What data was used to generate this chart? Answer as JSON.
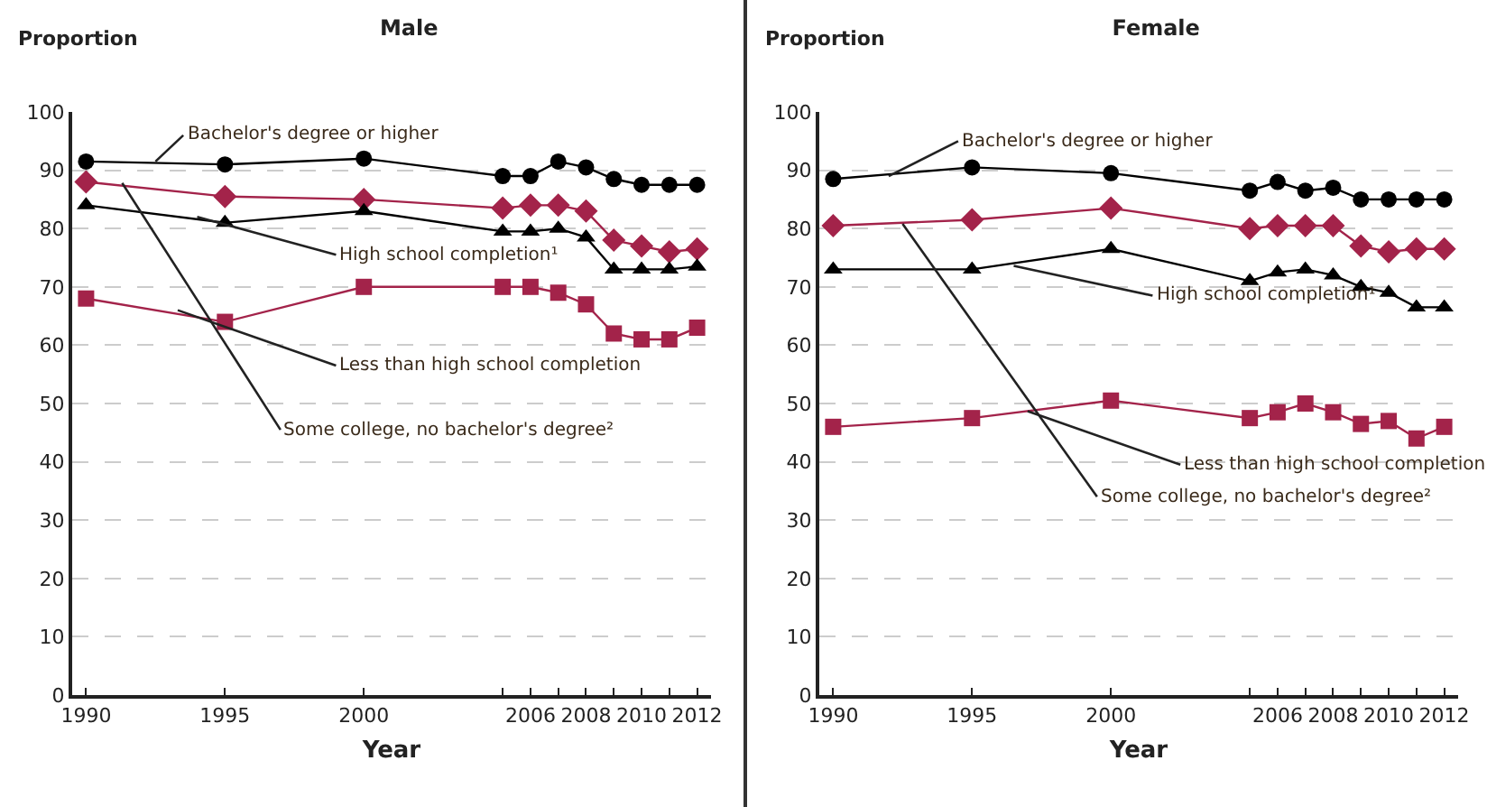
{
  "chart_data": [
    {
      "type": "line",
      "title": "Male",
      "xlabel": "Year",
      "ylabel": "Proportion",
      "x": [
        1990,
        1995,
        2000,
        2005,
        2006,
        2007,
        2008,
        2009,
        2010,
        2011,
        2012
      ],
      "series": [
        {
          "color": "#000000",
          "marker": "circle",
          "values": [
            91.5,
            91,
            92,
            89,
            89,
            91.5,
            90.5,
            88.5,
            87.5,
            87.5,
            87.5
          ]
        },
        {
          "color": "#a3234a",
          "marker": "diamond",
          "values": [
            88,
            85.5,
            85,
            83.5,
            84,
            84,
            83,
            78,
            77,
            76,
            76.5
          ]
        },
        {
          "color": "#000000",
          "marker": "triangle",
          "values": [
            84,
            81,
            83,
            79.5,
            79.5,
            80,
            78.5,
            73,
            73,
            73,
            73.5
          ]
        },
        {
          "color": "#a3234a",
          "marker": "square",
          "values": [
            68,
            64,
            70,
            70,
            70,
            69,
            67,
            62,
            61,
            61,
            63
          ]
        }
      ],
      "annotations": [
        {
          "text": "Bachelor's degree or higher",
          "x": 1992.5,
          "y": 91.5
        },
        {
          "text": "High school completion¹",
          "x": 1994,
          "y": 82
        },
        {
          "text": "Less than high school completion",
          "x": 1993.3,
          "y": 66
        },
        {
          "text": "Some college, no bachelor's degree²",
          "x": 1991.3,
          "y": 87.8
        }
      ],
      "xlim": [
        1989.5,
        2012.5
      ],
      "ylim": [
        0,
        100
      ],
      "xticks": [
        1990,
        1995,
        2000,
        {
          "value": 2005,
          "label": null
        },
        2006,
        {
          "value": 2007,
          "label": null
        },
        2008,
        {
          "value": 2009,
          "label": null
        },
        2010,
        {
          "value": 2011,
          "label": null
        },
        2012
      ],
      "yticks": [
        0,
        10,
        20,
        30,
        40,
        50,
        60,
        70,
        80,
        90,
        100
      ],
      "grid": "y",
      "line_style": "solid"
    },
    {
      "type": "line",
      "title": "Female",
      "xlabel": "Year",
      "ylabel": "Proportion",
      "x": [
        1990,
        1995,
        2000,
        2005,
        2006,
        2007,
        2008,
        2009,
        2010,
        2011,
        2012
      ],
      "series": [
        {
          "color": "#000000",
          "marker": "circle",
          "values": [
            88.5,
            90.5,
            89.5,
            86.5,
            88,
            86.5,
            87,
            85,
            85,
            85,
            85
          ]
        },
        {
          "color": "#a3234a",
          "marker": "diamond",
          "values": [
            80.5,
            81.5,
            83.5,
            80,
            80.5,
            80.5,
            80.5,
            77,
            76,
            76.5,
            76.5
          ]
        },
        {
          "color": "#000000",
          "marker": "triangle",
          "values": [
            73,
            73,
            76.5,
            71,
            72.5,
            73,
            72,
            70,
            69,
            66.5,
            66.5
          ]
        },
        {
          "color": "#a3234a",
          "marker": "square",
          "values": [
            46,
            47.5,
            50.5,
            47.5,
            48.5,
            50,
            48.5,
            46.5,
            47,
            44,
            46
          ]
        }
      ],
      "annotations": [
        {
          "text": "Bachelor's degree or higher",
          "x": 1992,
          "y": 89
        },
        {
          "text": "High school completion¹",
          "x": 1996.5,
          "y": 73.6
        },
        {
          "text": "Less than high school completion",
          "x": 1997,
          "y": 48.7
        },
        {
          "text": "Some college, no bachelor's degree²",
          "x": 1992.5,
          "y": 80.8
        }
      ],
      "xlim": [
        1989.5,
        2012.5
      ],
      "ylim": [
        0,
        100
      ],
      "xticks": [
        1990,
        1995,
        2000,
        {
          "value": 2005,
          "label": null
        },
        2006,
        {
          "value": 2007,
          "label": null
        },
        2008,
        {
          "value": 2009,
          "label": null
        },
        2010,
        {
          "value": 2011,
          "label": null
        },
        2012
      ],
      "yticks": [
        0,
        10,
        20,
        30,
        40,
        50,
        60,
        70,
        80,
        90,
        100
      ],
      "grid": "y",
      "line_style": "solid"
    }
  ]
}
